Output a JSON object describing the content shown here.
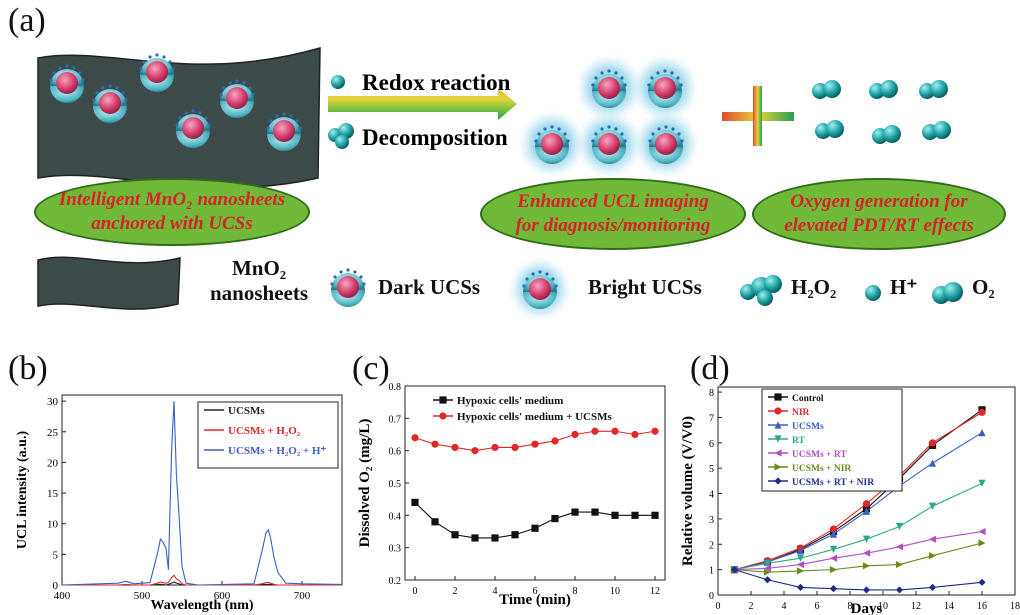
{
  "panel_a": {
    "label": "(a)",
    "arrow_top": "Redox reaction",
    "arrow_bottom": "Decomposition",
    "ellipse1": [
      "Intelligent MnO₂ nanosheets",
      "anchored with UCSs"
    ],
    "ellipse2": [
      "Enhanced UCL imaging",
      "for diagnosis/monitoring"
    ],
    "ellipse3": [
      "Oxygen generation for",
      "elevated PDT/RT effects"
    ],
    "legend": {
      "mno2": [
        "MnO₂",
        "nanosheets"
      ],
      "dark": "Dark UCSs",
      "bright": "Bright UCSs",
      "h2o2": "H₂O₂",
      "hplus": "H⁺",
      "o2": "O₂"
    },
    "colors": {
      "sheet": "#3d4a4a",
      "sphere_shell": "#4fb3c2",
      "sphere_core": "#d8436f",
      "ellipse": "#6fb838",
      "ellipse_text": "#d8232a",
      "molecule": "#1fa2a6"
    }
  },
  "panel_b_label": "(b)",
  "panel_c_label": "(c)",
  "panel_d_label": "(d)",
  "chart_data": [
    {
      "type": "line",
      "id": "b",
      "xlabel": "Wavelength (nm)",
      "ylabel": "UCL intensity (a.u.)",
      "xlim": [
        400,
        750
      ],
      "ylim": [
        0,
        31
      ],
      "xticks": [
        400,
        500,
        600,
        700
      ],
      "yticks": [
        0,
        5,
        10,
        15,
        20,
        25,
        30
      ],
      "x": [
        400,
        470,
        480,
        490,
        510,
        520,
        523,
        526,
        530,
        533,
        537,
        540,
        543,
        546,
        550,
        555,
        560,
        570,
        640,
        650,
        655,
        658,
        661,
        665,
        670,
        680,
        700,
        750
      ],
      "series": [
        {
          "name": "UCSMs",
          "color": "#222222",
          "values": [
            0,
            0,
            0,
            0,
            0,
            0.1,
            0.1,
            0.1,
            0,
            0.1,
            0.3,
            0.5,
            0.3,
            0.2,
            0,
            0,
            0,
            0,
            0,
            0.1,
            0.1,
            0.1,
            0.1,
            0,
            0,
            0,
            0,
            0
          ]
        },
        {
          "name": "UCSMs + H₂O₂",
          "color": "#e32626",
          "values": [
            0,
            0,
            0.1,
            0,
            0,
            0.3,
            0.5,
            0.4,
            0.3,
            0.4,
            1.2,
            1.6,
            1.0,
            0.8,
            0.2,
            0,
            0,
            0,
            0,
            0.2,
            0.4,
            0.4,
            0.3,
            0.1,
            0,
            0,
            0,
            0
          ]
        },
        {
          "name": "UCSMs + H₂O₂ + H⁺",
          "color": "#3b5fc4",
          "values": [
            0,
            0.3,
            0.6,
            0.2,
            0.4,
            5.5,
            7.5,
            7.0,
            6.0,
            2.5,
            22,
            30,
            18,
            12,
            3,
            0.3,
            0.2,
            0,
            0.2,
            5.5,
            8.5,
            9.0,
            7.5,
            4.5,
            2.0,
            0.3,
            0.2,
            0.1
          ]
        }
      ],
      "legend": "top-right"
    },
    {
      "type": "line",
      "id": "c",
      "xlabel": "Time (min)",
      "ylabel": "Dissolved O₂ (mg/L)",
      "xlim": [
        -0.5,
        12.5
      ],
      "ylim": [
        0.2,
        0.8
      ],
      "xticks": [
        0,
        2,
        4,
        6,
        8,
        10,
        12
      ],
      "yticks": [
        0.2,
        0.3,
        0.4,
        0.5,
        0.6,
        0.7,
        0.8
      ],
      "x": [
        0,
        1,
        2,
        3,
        4,
        5,
        6,
        7,
        8,
        9,
        10,
        11,
        12
      ],
      "series": [
        {
          "name": "Hypoxic cells' medium",
          "color": "#111111",
          "marker": "square",
          "values": [
            0.44,
            0.38,
            0.34,
            0.33,
            0.33,
            0.34,
            0.36,
            0.39,
            0.41,
            0.41,
            0.4,
            0.4,
            0.4
          ]
        },
        {
          "name": "Hypoxic cells' medium + UCSMs",
          "color": "#e32626",
          "marker": "circle",
          "values": [
            0.64,
            0.62,
            0.61,
            0.6,
            0.61,
            0.61,
            0.62,
            0.63,
            0.65,
            0.66,
            0.66,
            0.65,
            0.66
          ]
        }
      ],
      "legend": "top-left"
    },
    {
      "type": "line",
      "id": "d",
      "xlabel": "Days",
      "ylabel": "Relative volume (V/V0)",
      "xlim": [
        0,
        18
      ],
      "ylim": [
        0,
        8.2
      ],
      "xticks": [
        0,
        2,
        4,
        6,
        8,
        10,
        12,
        14,
        16,
        18
      ],
      "yticks": [
        0,
        1,
        2,
        3,
        4,
        5,
        6,
        7,
        8
      ],
      "x": [
        1,
        3,
        5,
        7,
        9,
        11,
        13,
        16
      ],
      "series": [
        {
          "name": "Control",
          "color": "#111111",
          "marker": "square",
          "values": [
            1,
            1.3,
            1.8,
            2.5,
            3.4,
            4.6,
            5.9,
            7.3
          ]
        },
        {
          "name": "NIR",
          "color": "#e32626",
          "marker": "circle",
          "values": [
            1,
            1.35,
            1.85,
            2.6,
            3.6,
            4.7,
            6.0,
            7.2
          ]
        },
        {
          "name": "UCSMs",
          "color": "#3b5fc4",
          "marker": "triangle-up",
          "values": [
            1,
            1.3,
            1.75,
            2.4,
            3.3,
            4.3,
            5.2,
            6.4
          ]
        },
        {
          "name": "RT",
          "color": "#2aa88a",
          "marker": "triangle-down",
          "values": [
            1,
            1.25,
            1.45,
            1.8,
            2.2,
            2.7,
            3.5,
            4.4
          ]
        },
        {
          "name": "UCSMs + RT",
          "color": "#b04fc4",
          "marker": "triangle-left",
          "values": [
            1,
            1.05,
            1.2,
            1.45,
            1.65,
            1.9,
            2.2,
            2.5
          ]
        },
        {
          "name": "UCSMs + NIR",
          "color": "#6b8a1a",
          "marker": "triangle-right",
          "values": [
            1,
            0.9,
            0.95,
            1.0,
            1.15,
            1.2,
            1.55,
            2.05
          ]
        },
        {
          "name": "UCSMs + RT + NIR",
          "color": "#1f2a8a",
          "marker": "diamond",
          "values": [
            1,
            0.6,
            0.3,
            0.25,
            0.2,
            0.2,
            0.3,
            0.5
          ]
        }
      ],
      "legend": "top-left"
    }
  ]
}
